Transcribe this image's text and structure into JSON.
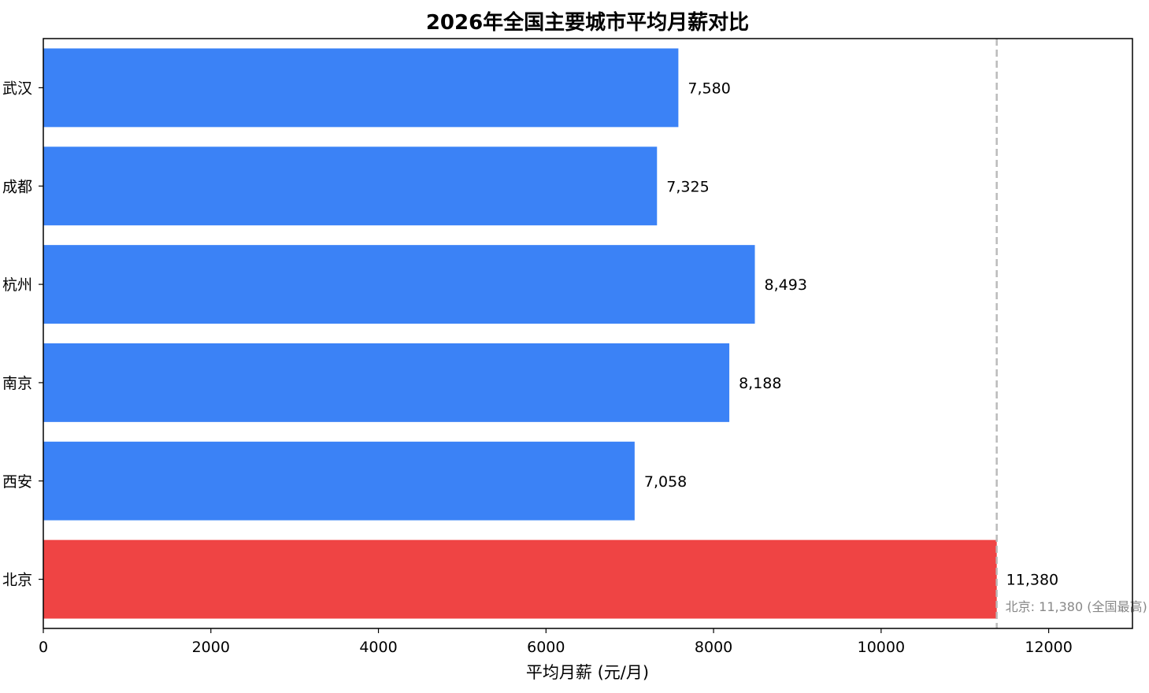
{
  "chart_data": {
    "type": "bar",
    "orientation": "horizontal",
    "title": "2026年全国主要城市平均月薪对比",
    "xlabel": "平均月薪 (元/月)",
    "ylabel": "",
    "categories": [
      "武汉",
      "成都",
      "杭州",
      "南京",
      "西安",
      "北京"
    ],
    "values": [
      7580,
      7325,
      8493,
      8188,
      7058,
      11380
    ],
    "value_labels": [
      "7,580",
      "7,325",
      "8,493",
      "8,188",
      "7,058",
      "11,380"
    ],
    "highlight_category": "北京",
    "xlim": [
      0,
      13000
    ],
    "xticks": [
      0,
      2000,
      4000,
      6000,
      8000,
      10000,
      12000
    ],
    "xtick_labels": [
      "0",
      "2000",
      "4000",
      "6000",
      "8000",
      "10000",
      "12000"
    ],
    "reference_line": {
      "value": 11380,
      "label": "北京: 11,380 (全国最高)",
      "style": "dashed"
    },
    "colors": {
      "bar": "#3b82f6",
      "highlight": "#ef4444",
      "reference_line": "#bbbbbb",
      "reference_text": "#888888"
    },
    "grid": false,
    "legend": "none"
  }
}
